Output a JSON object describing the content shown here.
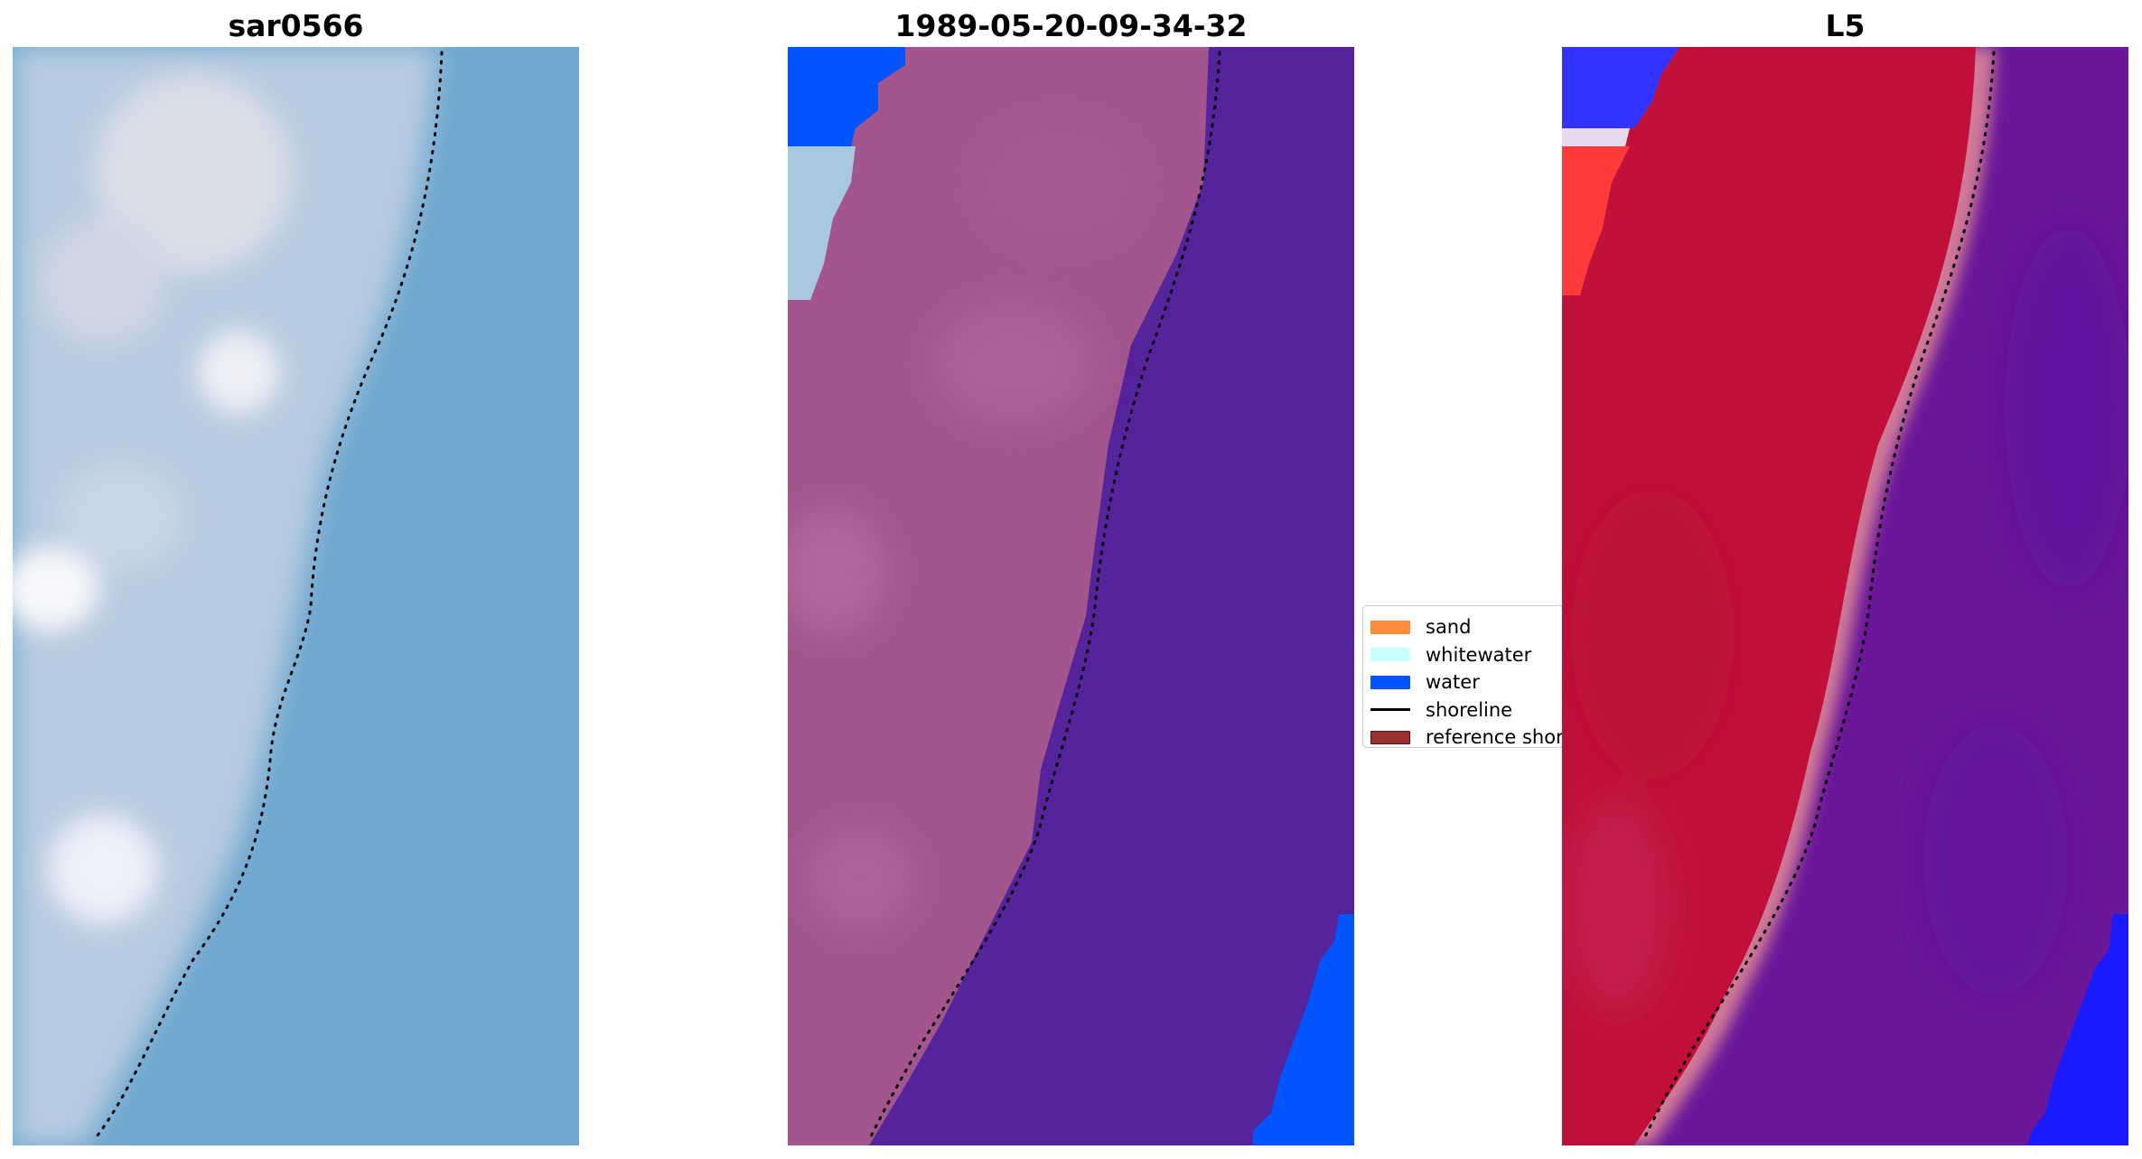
{
  "panels": [
    {
      "id": "sar",
      "title": "sar0566",
      "image": "rgb-satellite-composite"
    },
    {
      "id": "classified",
      "title": "1989-05-20-09-34-32",
      "image": "classified-image-with-shoreline"
    },
    {
      "id": "mndwi",
      "title": "L5",
      "image": "water-index-colormap"
    }
  ],
  "legend": {
    "items": [
      {
        "label": "sand",
        "kind": "patch",
        "color": "#ff8c3a"
      },
      {
        "label": "whitewater",
        "kind": "patch",
        "color": "#c8ffff"
      },
      {
        "label": "water",
        "kind": "patch",
        "color": "#0055ff"
      },
      {
        "label": "shoreline",
        "kind": "line",
        "color": "#000000"
      },
      {
        "label": "reference shoreline",
        "kind": "patch",
        "color": "#9b2f2f"
      }
    ]
  },
  "colors": {
    "sea": "#6fa8cf",
    "wet_sand": "#a3558d",
    "classified_water": "#55239a",
    "index_land": "#c0103a",
    "index_water": "#6a1799"
  }
}
